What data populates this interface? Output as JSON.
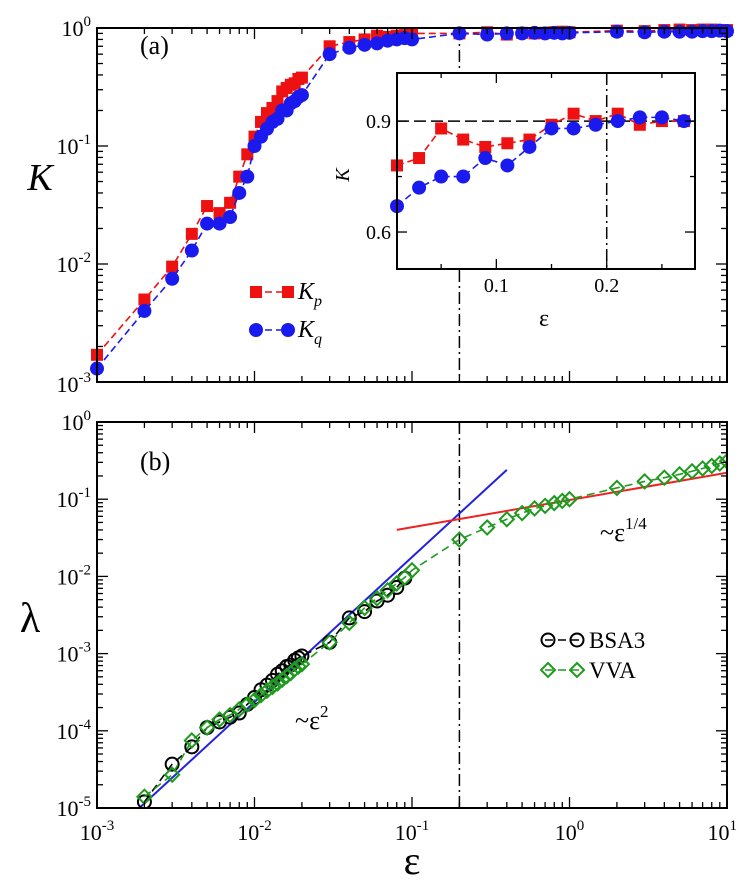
{
  "colors": {
    "red": "#ee1111",
    "blue": "#1a1aee",
    "green": "#1e9a1e",
    "black": "#000000",
    "fit_red": "#ee2222",
    "fit_blue": "#2222dd"
  },
  "chart_data": [
    {
      "panel": "(a)",
      "type": "line",
      "xscale": "log",
      "yscale": "log",
      "xlim": [
        0.001,
        10
      ],
      "ylim": [
        0.001,
        1
      ],
      "ylabel": "K",
      "yticks": [
        {
          "base": "10",
          "exp": "0"
        },
        {
          "base": "10",
          "exp": "-1"
        },
        {
          "base": "10",
          "exp": "-2"
        },
        {
          "base": "10",
          "exp": "-3"
        }
      ],
      "legend": {
        "position": "center-left",
        "entries": [
          {
            "base": "K",
            "sub": "p"
          },
          {
            "base": "K",
            "sub": "q"
          }
        ]
      },
      "vline_x": 0.2,
      "series": [
        {
          "name": "K_p",
          "marker": "square",
          "color": "red",
          "x": [
            0.001,
            0.002,
            0.003,
            0.004,
            0.005,
            0.006,
            0.007,
            0.008,
            0.009,
            0.01,
            0.011,
            0.012,
            0.013,
            0.014,
            0.015,
            0.016,
            0.017,
            0.018,
            0.019,
            0.02,
            0.03,
            0.04,
            0.05,
            0.06,
            0.07,
            0.08,
            0.09,
            0.1,
            0.2,
            0.3,
            0.4,
            0.5,
            0.6,
            0.7,
            0.8,
            0.9,
            1,
            2,
            3,
            4,
            5,
            6,
            7,
            8,
            9,
            10
          ],
          "y": [
            0.0017,
            0.005,
            0.0095,
            0.018,
            0.031,
            0.027,
            0.033,
            0.055,
            0.085,
            0.12,
            0.16,
            0.19,
            0.21,
            0.24,
            0.29,
            0.31,
            0.33,
            0.34,
            0.37,
            0.38,
            0.7,
            0.76,
            0.8,
            0.86,
            0.84,
            0.86,
            0.87,
            0.9,
            0.9,
            0.92,
            0.88,
            0.91,
            0.9,
            0.91,
            0.92,
            0.93,
            0.92,
            0.95,
            0.94,
            0.96,
            0.97,
            0.96,
            0.97,
            0.97,
            0.96,
            0.96
          ]
        },
        {
          "name": "K_q",
          "marker": "circle",
          "color": "blue",
          "x": [
            0.001,
            0.002,
            0.003,
            0.004,
            0.005,
            0.006,
            0.007,
            0.008,
            0.009,
            0.01,
            0.011,
            0.012,
            0.013,
            0.014,
            0.015,
            0.016,
            0.017,
            0.018,
            0.019,
            0.02,
            0.03,
            0.04,
            0.05,
            0.06,
            0.07,
            0.08,
            0.09,
            0.1,
            0.2,
            0.3,
            0.4,
            0.5,
            0.6,
            0.7,
            0.8,
            0.9,
            1,
            2,
            3,
            4,
            5,
            6,
            7,
            8,
            9,
            10
          ],
          "y": [
            0.0013,
            0.004,
            0.0075,
            0.013,
            0.022,
            0.022,
            0.025,
            0.04,
            0.055,
            0.1,
            0.12,
            0.14,
            0.16,
            0.17,
            0.2,
            0.2,
            0.23,
            0.24,
            0.26,
            0.27,
            0.6,
            0.68,
            0.72,
            0.74,
            0.78,
            0.8,
            0.82,
            0.8,
            0.9,
            0.88,
            0.9,
            0.9,
            0.91,
            0.9,
            0.91,
            0.9,
            0.91,
            0.93,
            0.92,
            0.93,
            0.93,
            0.93,
            0.94,
            0.94,
            0.95,
            0.94
          ]
        }
      ]
    },
    {
      "panel": "inset",
      "type": "line",
      "xscale": "linear",
      "yscale": "linear",
      "xlim": [
        0.01,
        0.28
      ],
      "ylim": [
        0.5,
        1.03
      ],
      "xlabel": "ε",
      "ylabel": "K",
      "xticks": [
        "0.1",
        "0.2"
      ],
      "yticks": [
        "0.9",
        "0.6"
      ],
      "hline_y": 0.9,
      "vline_x": 0.2,
      "series": [
        {
          "name": "K_p",
          "marker": "square",
          "color": "red",
          "x": [
            0.01,
            0.03,
            0.05,
            0.07,
            0.09,
            0.11,
            0.13,
            0.15,
            0.17,
            0.19,
            0.21,
            0.23,
            0.25,
            0.27
          ],
          "y": [
            0.78,
            0.8,
            0.88,
            0.85,
            0.83,
            0.84,
            0.85,
            0.89,
            0.92,
            0.9,
            0.92,
            0.89,
            0.9,
            0.9
          ]
        },
        {
          "name": "K_q",
          "marker": "circle",
          "color": "blue",
          "x": [
            0.01,
            0.03,
            0.05,
            0.07,
            0.09,
            0.11,
            0.13,
            0.15,
            0.17,
            0.19,
            0.21,
            0.23,
            0.25,
            0.27
          ],
          "y": [
            0.67,
            0.72,
            0.75,
            0.75,
            0.8,
            0.78,
            0.83,
            0.88,
            0.88,
            0.89,
            0.9,
            0.91,
            0.91,
            0.9
          ]
        }
      ]
    },
    {
      "panel": "(b)",
      "type": "line",
      "xscale": "log",
      "yscale": "log",
      "xlim": [
        0.001,
        10
      ],
      "ylim": [
        1e-05,
        1
      ],
      "xlabel": "ε",
      "ylabel": "λ",
      "xticks": [
        {
          "base": "10",
          "exp": "-3"
        },
        {
          "base": "10",
          "exp": "-2"
        },
        {
          "base": "10",
          "exp": "-1"
        },
        {
          "base": "10",
          "exp": "0"
        },
        {
          "base": "10",
          "exp": "1"
        }
      ],
      "yticks": [
        {
          "base": "10",
          "exp": "0"
        },
        {
          "base": "10",
          "exp": "-1"
        },
        {
          "base": "10",
          "exp": "-2"
        },
        {
          "base": "10",
          "exp": "-3"
        },
        {
          "base": "10",
          "exp": "-4"
        },
        {
          "base": "10",
          "exp": "-5"
        }
      ],
      "legend": {
        "position": "right",
        "entries": [
          "BSA3",
          "VVA"
        ]
      },
      "vline_x": 0.2,
      "annotations": [
        {
          "prefix": "~ε",
          "exp": "2"
        },
        {
          "prefix": "~ε",
          "exp": "1/4"
        }
      ],
      "fits": [
        {
          "label": "~ε^2",
          "color": "fit_blue",
          "x": [
            0.0015,
            0.4
          ],
          "y": [
            6.7e-06,
            0.24
          ]
        },
        {
          "label": "~ε^1/4",
          "color": "fit_red",
          "x": [
            0.08,
            10
          ],
          "y": [
            0.04,
            0.22
          ]
        }
      ],
      "series": [
        {
          "name": "BSA3",
          "marker": "open-circle",
          "color": "black",
          "x": [
            0.002,
            0.003,
            0.004,
            0.005,
            0.006,
            0.007,
            0.008,
            0.009,
            0.01,
            0.011,
            0.012,
            0.013,
            0.014,
            0.015,
            0.016,
            0.017,
            0.018,
            0.019,
            0.02,
            0.03,
            0.04,
            0.05,
            0.06,
            0.07,
            0.08,
            0.09
          ],
          "y": [
            1.2e-05,
            3.7e-05,
            6.2e-05,
            0.00011,
            0.00013,
            0.00015,
            0.00017,
            0.00022,
            0.00027,
            0.00034,
            0.00039,
            0.00045,
            0.00054,
            0.0006,
            0.00068,
            0.00071,
            0.00082,
            0.00088,
            0.00093,
            0.0014,
            0.0029,
            0.0035,
            0.0048,
            0.0057,
            0.0072,
            0.0095
          ]
        },
        {
          "name": "VVA",
          "marker": "open-diamond",
          "color": "green",
          "x": [
            0.002,
            0.003,
            0.004,
            0.005,
            0.006,
            0.007,
            0.008,
            0.009,
            0.01,
            0.011,
            0.012,
            0.013,
            0.014,
            0.015,
            0.016,
            0.017,
            0.018,
            0.019,
            0.02,
            0.03,
            0.04,
            0.05,
            0.06,
            0.07,
            0.08,
            0.09,
            0.1,
            0.2,
            0.3,
            0.4,
            0.5,
            0.6,
            0.7,
            0.8,
            0.9,
            1,
            2,
            3,
            4,
            5,
            6,
            7,
            8,
            9,
            10
          ],
          "y": [
            1.4e-05,
            2.7e-05,
            7.5e-05,
            0.00011,
            0.00014,
            0.00016,
            0.00019,
            0.00022,
            0.00025,
            0.00029,
            0.00033,
            0.00037,
            0.00041,
            0.00046,
            0.00051,
            0.00056,
            0.00063,
            0.00068,
            0.00073,
            0.0014,
            0.0025,
            0.0039,
            0.0052,
            0.0066,
            0.0081,
            0.0097,
            0.012,
            0.03,
            0.043,
            0.055,
            0.066,
            0.076,
            0.082,
            0.089,
            0.095,
            0.1,
            0.14,
            0.17,
            0.19,
            0.21,
            0.23,
            0.25,
            0.27,
            0.29,
            0.31
          ]
        }
      ]
    }
  ],
  "panel_labels": {
    "a": "(a)",
    "b": "(b)"
  }
}
